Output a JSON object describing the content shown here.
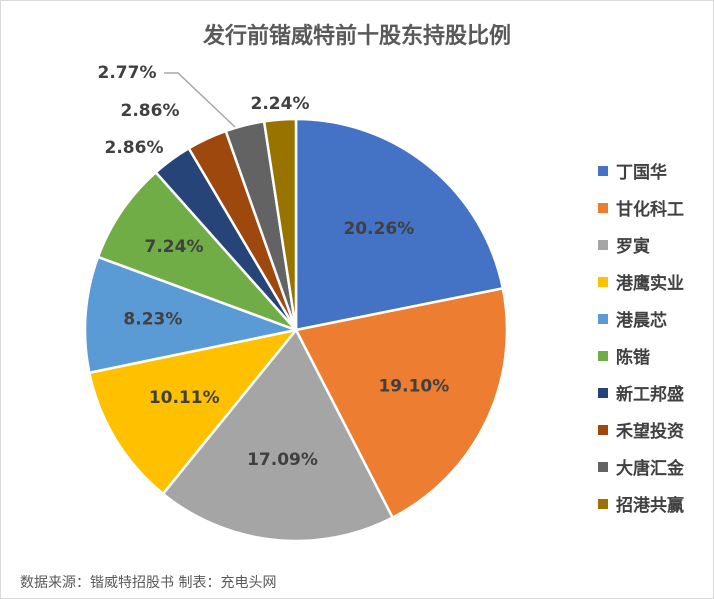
{
  "title": "发行前锴威特前十股东持股比例",
  "source": "数据来源：锴威特招股书  制表：充电头网",
  "chart_data": {
    "type": "pie",
    "title": "发行前锴威特前十股东持股比例",
    "legend_position": "right",
    "start_angle_deg": 0,
    "direction": "clockwise",
    "categories": [
      "丁国华",
      "甘化科工",
      "罗寅",
      "港鹰实业",
      "港晨芯",
      "陈锴",
      "新工邦盛",
      "禾望投资",
      "大唐汇金",
      "招港共赢"
    ],
    "values": [
      20.26,
      19.1,
      17.09,
      10.11,
      8.23,
      7.24,
      2.86,
      2.86,
      2.77,
      2.24
    ],
    "labels": [
      "20.26%",
      "19.10%",
      "17.09%",
      "10.11%",
      "8.23%",
      "7.24%",
      "2.86%",
      "2.86%",
      "2.77%",
      "2.24%"
    ],
    "colors": [
      "#4472C4",
      "#ED7D31",
      "#A5A5A5",
      "#FFC000",
      "#5B9BD5",
      "#70AD47",
      "#264478",
      "#9E480E",
      "#636363",
      "#997300"
    ]
  }
}
